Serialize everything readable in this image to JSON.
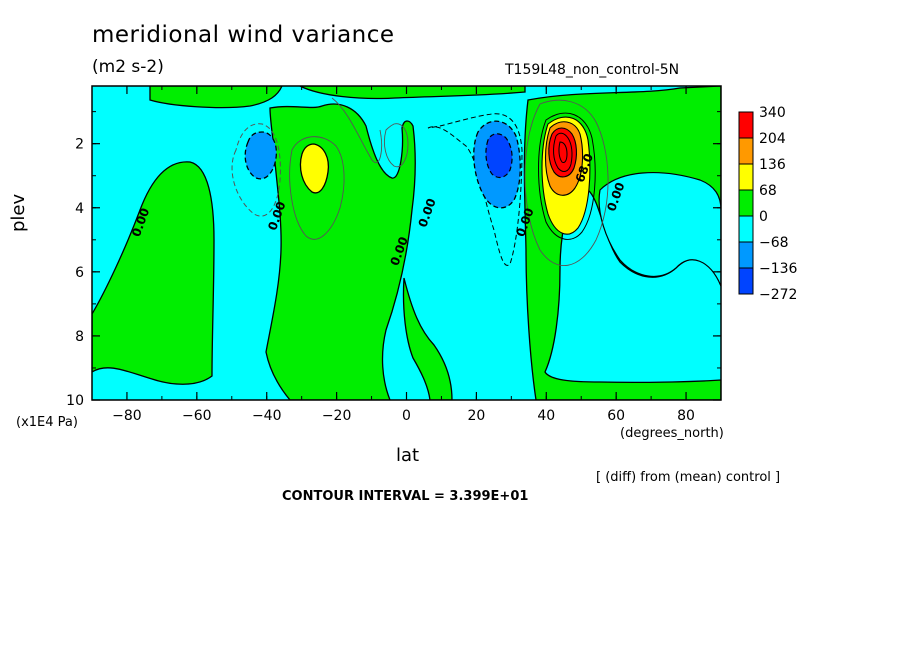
{
  "chart_data": {
    "type": "heatmap",
    "title": "meridional wind variance",
    "units": "(m2 s-2)",
    "run_label": "T159L48_non_control-5N",
    "xlabel": "lat",
    "xunit": "(degrees_north)",
    "ylabel": "plev",
    "yunit": "(x1E4 Pa)",
    "xlim": [
      -90,
      90
    ],
    "ylim": [
      10,
      0.2
    ],
    "x_ticks": [
      -80,
      -60,
      -40,
      -20,
      0,
      20,
      40,
      60,
      80
    ],
    "y_ticks": [
      2,
      4,
      6,
      8,
      10
    ],
    "legend": {
      "position": "right",
      "levels": [
        "340",
        "204",
        "136",
        "68",
        "0",
        "-68",
        "-136",
        "-272"
      ],
      "colors": [
        "#ff0000",
        "#ff9900",
        "#ffff00",
        "#00ee00",
        "#00ffff",
        "#0099ff",
        "#0044ff"
      ]
    },
    "contour_labels": [
      {
        "text": "0.00",
        "lat": -75,
        "plev": 4.5
      },
      {
        "text": "0.00",
        "lat": -36,
        "plev": 4.3
      },
      {
        "text": "0.00",
        "lat": 7,
        "plev": 4.2
      },
      {
        "text": "0.00",
        "lat": -1,
        "plev": 5.4
      },
      {
        "text": "0.00",
        "lat": 35,
        "plev": 4.5
      },
      {
        "text": "0.00",
        "lat": 61,
        "plev": 3.7
      },
      {
        "text": "68.0",
        "lat": 52,
        "plev": 2.8
      }
    ],
    "features": [
      {
        "kind": "max",
        "lat": 44,
        "plev": 2.2,
        "value": 340
      },
      {
        "kind": "min",
        "lat": 28,
        "plev": 2.2,
        "value": -136
      },
      {
        "kind": "min",
        "lat": -41,
        "plev": 2.2,
        "value": -136
      },
      {
        "kind": "max",
        "lat": -26,
        "plev": 2.6,
        "value": 68
      }
    ],
    "annotation": "[ (diff) from (mean) control ]",
    "contour_interval": "CONTOUR INTERVAL = 3.399E+01"
  }
}
